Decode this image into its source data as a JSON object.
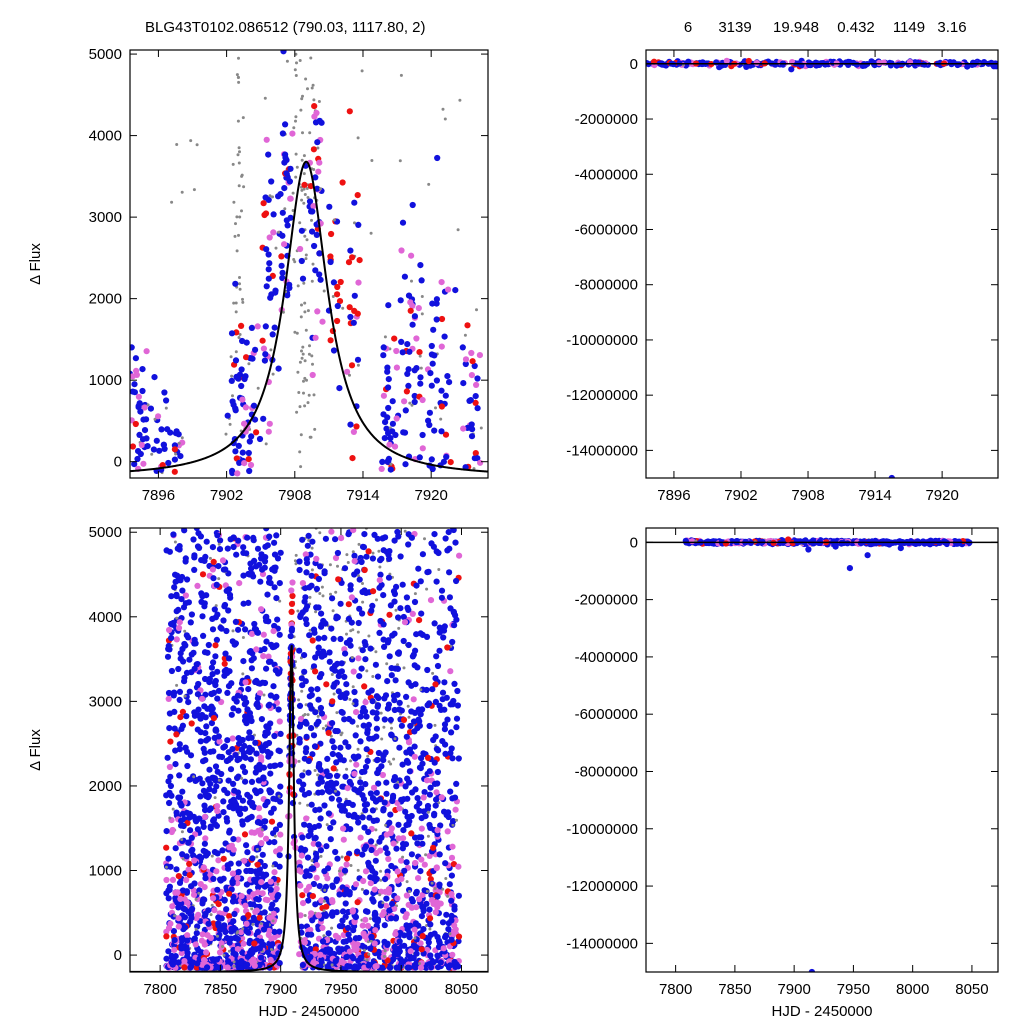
{
  "header": {
    "title": "BLG43T0102.086512 (790.03, 1117.80,    2)",
    "params": [
      "6",
      "3139",
      "19.948",
      "0.432",
      "1149",
      "3.16"
    ]
  },
  "colors": {
    "red": "#ee1111",
    "blue": "#1111dd",
    "magenta": "#e066d6",
    "gray": "#888888",
    "model": "#000000",
    "frame": "#000000"
  },
  "chart_data": [
    {
      "id": "top-left",
      "type": "scatter",
      "xlim": [
        7893.5,
        7925
      ],
      "ylim": [
        -200,
        5050
      ],
      "xticks": [
        7896,
        7902,
        7908,
        7914,
        7920
      ],
      "yticks": [
        0,
        1000,
        2000,
        3000,
        4000,
        5000
      ],
      "xlabel": "",
      "ylabel": "Δ Flux",
      "model": {
        "t0": 7909.0,
        "amp": 3880,
        "width": 2.3,
        "base": -200
      },
      "clusters": [
        {
          "cx": 7894.2,
          "cy": 500,
          "sx": 0.45,
          "sy": 420,
          "n": 40,
          "w": [
            0.05,
            0.65,
            0.2,
            0.1
          ]
        },
        {
          "cx": 7896.0,
          "cy": 350,
          "sx": 0.6,
          "sy": 320,
          "n": 30,
          "w": [
            0.05,
            0.65,
            0.2,
            0.1
          ]
        },
        {
          "cx": 7897.8,
          "cy": 200,
          "sx": 0.3,
          "sy": 180,
          "n": 12,
          "w": [
            0.05,
            0.7,
            0.15,
            0.1
          ]
        },
        {
          "cx": 7902.8,
          "cy": 900,
          "sx": 0.4,
          "sy": 750,
          "n": 40,
          "w": [
            0.1,
            0.55,
            0.2,
            0.15
          ]
        },
        {
          "cx": 7904.0,
          "cy": 600,
          "sx": 0.45,
          "sy": 550,
          "n": 40,
          "w": [
            0.1,
            0.55,
            0.2,
            0.15
          ]
        },
        {
          "cx": 7905.7,
          "cy": 2300,
          "sx": 0.4,
          "sy": 1100,
          "n": 45,
          "w": [
            0.1,
            0.55,
            0.2,
            0.15
          ]
        },
        {
          "cx": 7907.2,
          "cy": 3200,
          "sx": 0.35,
          "sy": 700,
          "n": 50,
          "w": [
            0.1,
            0.5,
            0.2,
            0.2
          ]
        },
        {
          "cx": 7908.8,
          "cy": 2200,
          "sx": 0.25,
          "sy": 1100,
          "n": 25,
          "w": [
            0.05,
            0.2,
            0.1,
            0.65
          ]
        },
        {
          "cx": 7909.8,
          "cy": 2900,
          "sx": 0.35,
          "sy": 800,
          "n": 45,
          "w": [
            0.1,
            0.55,
            0.2,
            0.15
          ]
        },
        {
          "cx": 7911.7,
          "cy": 2300,
          "sx": 0.5,
          "sy": 650,
          "n": 25,
          "w": [
            0.45,
            0.25,
            0.15,
            0.15
          ]
        },
        {
          "cx": 7913.2,
          "cy": 1800,
          "sx": 0.4,
          "sy": 850,
          "n": 28,
          "w": [
            0.3,
            0.3,
            0.25,
            0.15
          ]
        },
        {
          "cx": 7916.3,
          "cy": 700,
          "sx": 0.5,
          "sy": 600,
          "n": 45,
          "w": [
            0.12,
            0.55,
            0.2,
            0.13
          ]
        },
        {
          "cx": 7918.3,
          "cy": 1200,
          "sx": 0.6,
          "sy": 800,
          "n": 55,
          "w": [
            0.1,
            0.6,
            0.17,
            0.13
          ]
        },
        {
          "cx": 7920.8,
          "cy": 1000,
          "sx": 0.6,
          "sy": 700,
          "n": 45,
          "w": [
            0.1,
            0.6,
            0.17,
            0.13
          ]
        },
        {
          "cx": 7923.6,
          "cy": 800,
          "sx": 0.6,
          "sy": 650,
          "n": 35,
          "w": [
            0.12,
            0.55,
            0.2,
            0.13
          ]
        }
      ],
      "gray_bands": [
        {
          "x0": 7902.5,
          "x1": 7903.5,
          "y0": 1500,
          "y1": 5050,
          "n": 35
        },
        {
          "x0": 7907.8,
          "x1": 7909.8,
          "y0": 100,
          "y1": 5050,
          "n": 70
        },
        {
          "x0": 7896.5,
          "x1": 7900,
          "y0": 2500,
          "y1": 4200,
          "n": 6
        },
        {
          "x0": 7913,
          "x1": 7923,
          "y0": 2800,
          "y1": 5000,
          "n": 12
        }
      ]
    },
    {
      "id": "top-right",
      "type": "scatter",
      "xlim": [
        7893.5,
        7925
      ],
      "ylim": [
        -15000000,
        500000
      ],
      "xticks": [
        7896,
        7902,
        7908,
        7914,
        7920
      ],
      "yticks": [
        0,
        -2000000,
        -4000000,
        -6000000,
        -8000000,
        -10000000,
        -12000000,
        -14000000
      ],
      "ytick_labels": [
        "0",
        "-2000000",
        "-4000000",
        "-6000000",
        "-8000000",
        "-10000000",
        "-12000000",
        "-14000000"
      ],
      "xlabel": "",
      "ylabel": "",
      "band": {
        "y": 0,
        "spread": 80000,
        "n": 260
      },
      "outliers": [
        {
          "x": 7915.5,
          "y": -15000000,
          "c": "blue"
        },
        {
          "x": 7906.5,
          "y": -200000,
          "c": "blue"
        },
        {
          "x": 7902.7,
          "y": 100000,
          "c": "red"
        }
      ]
    },
    {
      "id": "bottom-left",
      "type": "scatter",
      "xlim": [
        7775,
        8072
      ],
      "ylim": [
        -200,
        5050
      ],
      "xticks": [
        7800,
        7850,
        7900,
        7950,
        8000,
        8050
      ],
      "yticks": [
        0,
        1000,
        2000,
        3000,
        4000,
        5000
      ],
      "xlabel": "HJD - 2450000",
      "ylabel": "Δ Flux",
      "model": {
        "t0": 7909.0,
        "amp": 3880,
        "width": 2.3,
        "base": -200
      },
      "spans": [
        {
          "x0": 7805,
          "x1": 7900,
          "n": 1500
        },
        {
          "x0": 7915,
          "x1": 8048,
          "n": 1600
        }
      ],
      "gray_band": {
        "x0": 7910,
        "x1": 8010,
        "y0": 1500,
        "y1": 5050,
        "n": 160
      },
      "peak": {
        "x0": 7902,
        "x1": 7915,
        "n": 80
      }
    },
    {
      "id": "bottom-right",
      "type": "scatter",
      "xlim": [
        7775,
        8072
      ],
      "ylim": [
        -15000000,
        500000
      ],
      "xticks": [
        7800,
        7850,
        7900,
        7950,
        8000,
        8050
      ],
      "yticks": [
        0,
        -2000000,
        -4000000,
        -6000000,
        -8000000,
        -10000000,
        -12000000,
        -14000000
      ],
      "ytick_labels": [
        "0",
        "-2000000",
        "-4000000",
        "-6000000",
        "-8000000",
        "-10000000",
        "-12000000",
        "-14000000"
      ],
      "xlabel": "HJD - 2450000",
      "ylabel": "",
      "band": {
        "x0": 7805,
        "x1": 8048,
        "y": 0,
        "spread": 60000,
        "n": 420
      },
      "outliers": [
        {
          "x": 7915,
          "y": -15000000,
          "c": "blue"
        },
        {
          "x": 7947,
          "y": -900000,
          "c": "blue"
        },
        {
          "x": 7962,
          "y": -450000,
          "c": "blue"
        },
        {
          "x": 7935,
          "y": -150000,
          "c": "blue"
        },
        {
          "x": 7990,
          "y": -200000,
          "c": "blue"
        },
        {
          "x": 7895,
          "y": 100000,
          "c": "red"
        },
        {
          "x": 7912,
          "y": -250000,
          "c": "blue"
        }
      ]
    }
  ]
}
